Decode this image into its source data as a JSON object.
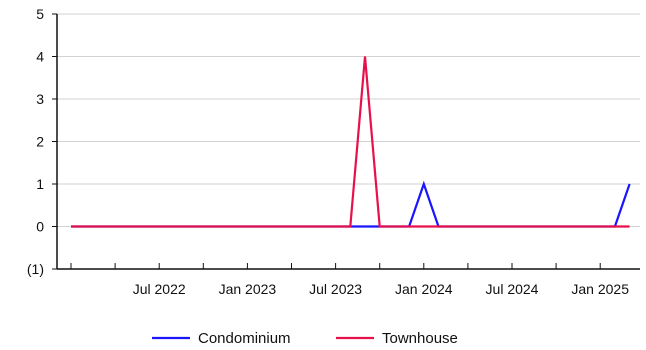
{
  "chart_data": {
    "type": "line",
    "title": "",
    "xlabel": "",
    "ylabel": "",
    "ylim": [
      -1,
      5
    ],
    "y_ticks": [
      5,
      4,
      3,
      2,
      1,
      0,
      -1
    ],
    "y_tick_labels": [
      "5",
      "4",
      "3",
      "2",
      "1",
      "0",
      "(1)"
    ],
    "x_tick_labels": [
      "Jul 2022",
      "Jan 2023",
      "Jul 2023",
      "Jan 2024",
      "Jul 2024",
      "Jan 2025"
    ],
    "x": [
      "2022-01",
      "2022-02",
      "2022-03",
      "2022-04",
      "2022-05",
      "2022-06",
      "2022-07",
      "2022-08",
      "2022-09",
      "2022-10",
      "2022-11",
      "2022-12",
      "2023-01",
      "2023-02",
      "2023-03",
      "2023-04",
      "2023-05",
      "2023-06",
      "2023-07",
      "2023-08",
      "2023-09",
      "2023-10",
      "2023-11",
      "2023-12",
      "2024-01",
      "2024-02",
      "2024-03",
      "2024-04",
      "2024-05",
      "2024-06",
      "2024-07",
      "2024-08",
      "2024-09",
      "2024-10",
      "2024-11",
      "2024-12",
      "2025-01",
      "2025-02",
      "2025-03"
    ],
    "series": [
      {
        "name": "Condominium",
        "color": "#1a14ff",
        "values": [
          0,
          0,
          0,
          0,
          0,
          0,
          0,
          0,
          0,
          0,
          0,
          0,
          0,
          0,
          0,
          0,
          0,
          0,
          0,
          0,
          0,
          0,
          0,
          0,
          1,
          0,
          0,
          0,
          0,
          0,
          0,
          0,
          0,
          0,
          0,
          0,
          0,
          0,
          1
        ]
      },
      {
        "name": "Townhouse",
        "color": "#e8104a",
        "values": [
          0,
          0,
          0,
          0,
          0,
          0,
          0,
          0,
          0,
          0,
          0,
          0,
          0,
          0,
          0,
          0,
          0,
          0,
          0,
          0,
          4,
          0,
          0,
          0,
          0,
          0,
          0,
          0,
          0,
          0,
          0,
          0,
          0,
          0,
          0,
          0,
          0,
          0,
          0
        ]
      }
    ],
    "grid": true,
    "legend_position": "bottom"
  }
}
